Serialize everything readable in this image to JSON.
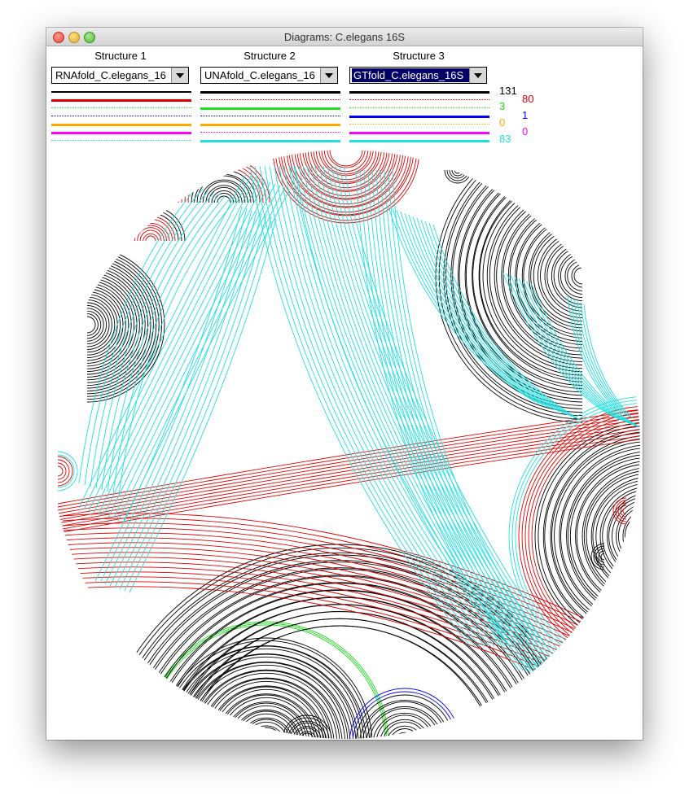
{
  "window": {
    "title": "Diagrams: C.elegans 16S"
  },
  "structures": [
    {
      "header": "Structure 1",
      "selected": "RNAfold_C.elegans_16"
    },
    {
      "header": "Structure 2",
      "selected": "UNAfold_C.elegans_16"
    },
    {
      "header": "Structure 3",
      "selected": "GTfold_C.elegans_16S"
    }
  ],
  "legend_counts": {
    "black": "131",
    "green": "3",
    "orange": "0",
    "cyan": "83",
    "red": "80",
    "blue": "1",
    "magenta": "0"
  },
  "colors": {
    "black": "#000000",
    "red": "#e00000",
    "green": "#22e022",
    "orange": "#ffaa00",
    "magenta": "#ff00ff",
    "cyan": "#20e0e0",
    "blue": "#0000ff"
  }
}
